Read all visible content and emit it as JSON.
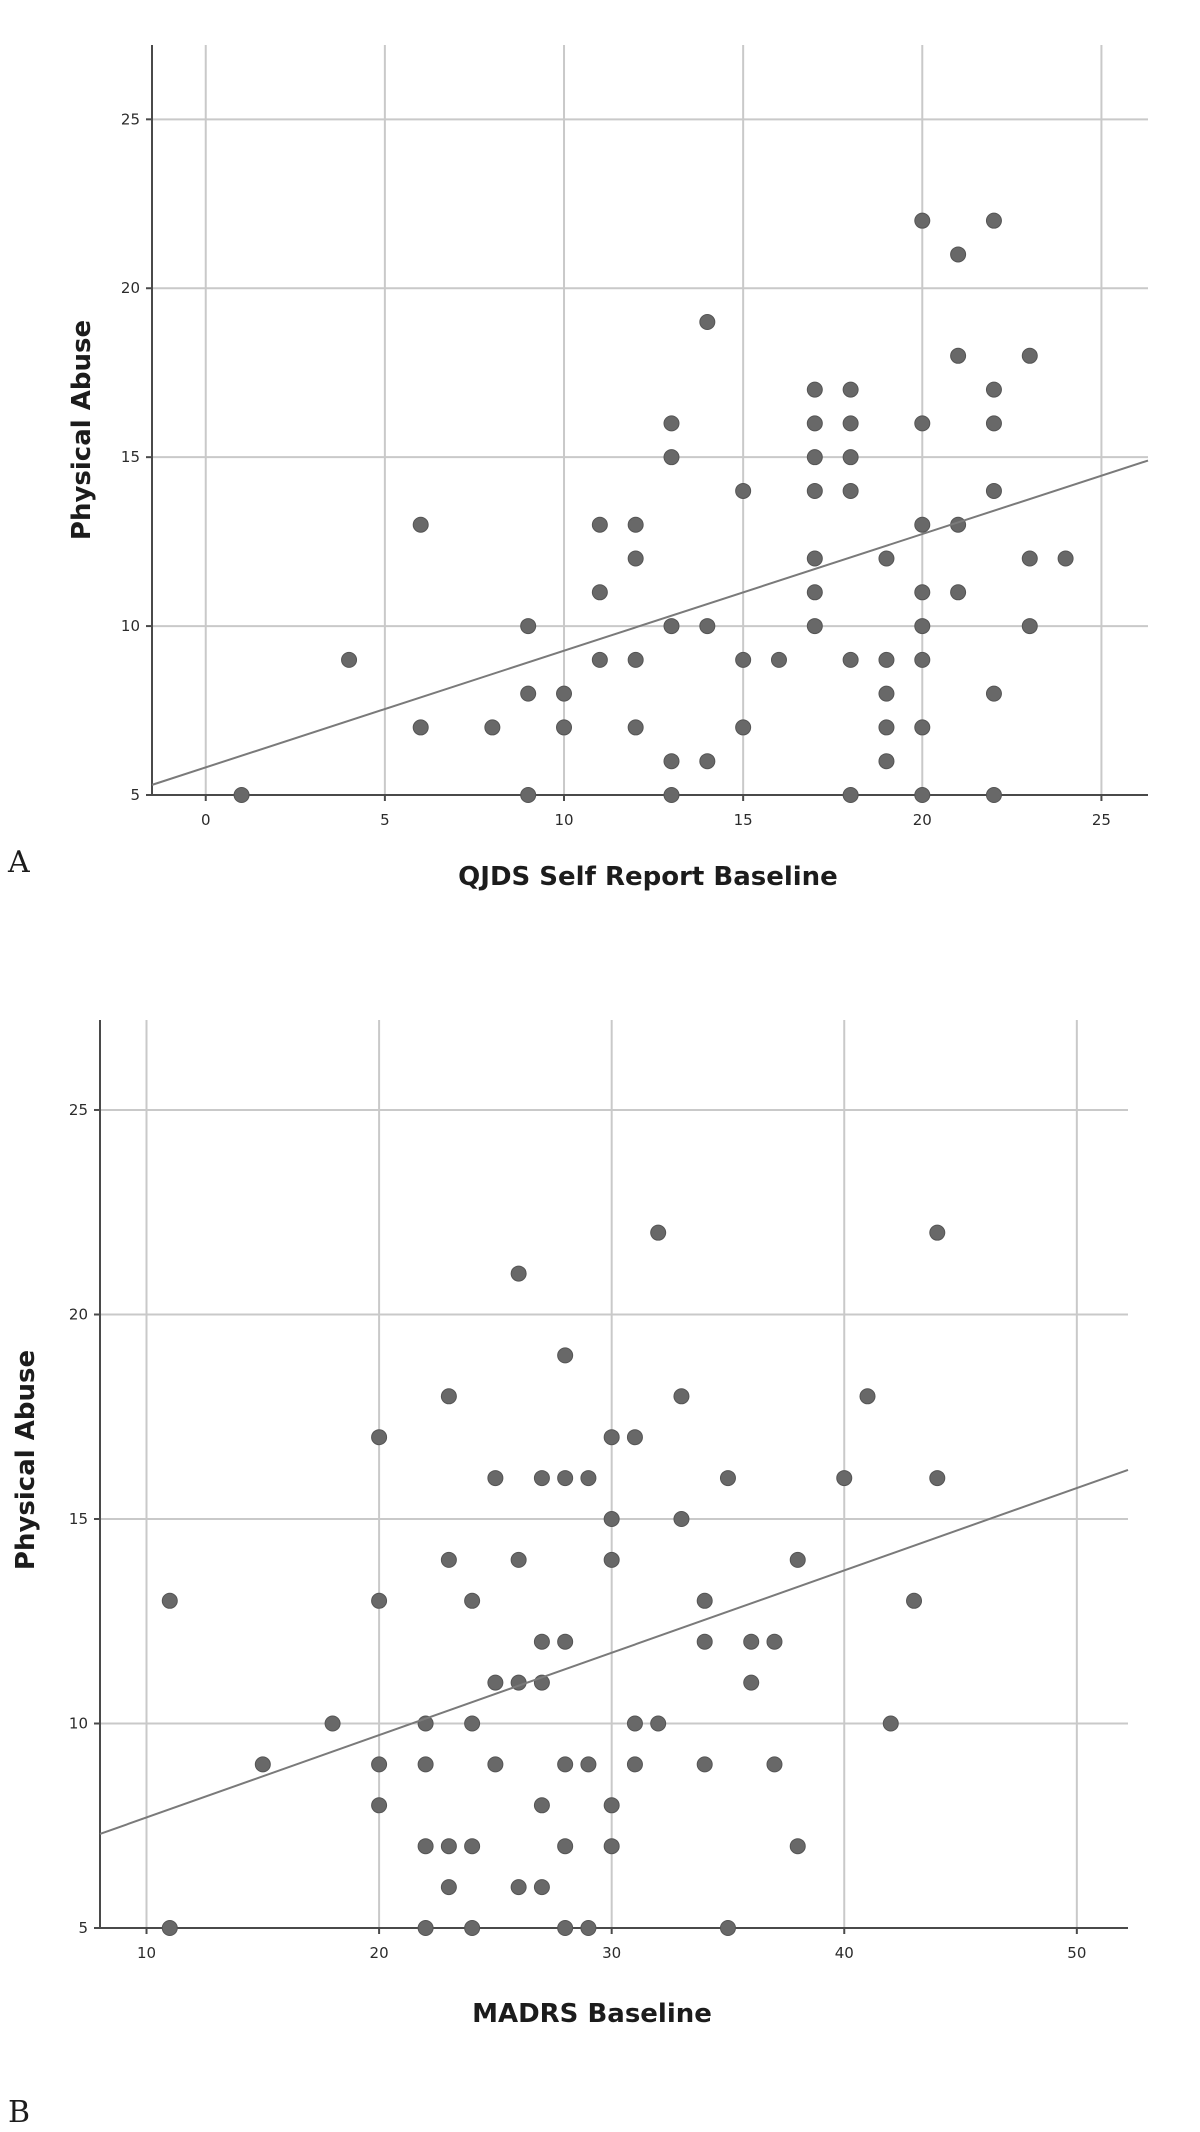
{
  "chart_data": [
    {
      "type": "scatter",
      "panel_label": "A",
      "xlabel": "QJDS Self Report Baseline",
      "ylabel": "Physical Abuse",
      "xlim": [
        -1.5,
        26.3
      ],
      "ylim": [
        5,
        27.2
      ],
      "xticks": [
        0,
        5,
        10,
        15,
        20,
        25
      ],
      "yticks": [
        5,
        10,
        15,
        20,
        25
      ],
      "grid": true,
      "fit_line": {
        "x": [
          -1.5,
          26.3
        ],
        "y": [
          5.3,
          14.9
        ]
      },
      "points": [
        [
          1,
          5
        ],
        [
          4,
          9
        ],
        [
          6,
          13
        ],
        [
          6,
          7
        ],
        [
          8,
          7
        ],
        [
          9,
          10
        ],
        [
          9,
          8
        ],
        [
          9,
          5
        ],
        [
          10,
          8
        ],
        [
          10,
          7
        ],
        [
          11,
          13
        ],
        [
          11,
          11
        ],
        [
          11,
          9
        ],
        [
          12,
          13
        ],
        [
          12,
          12
        ],
        [
          12,
          9
        ],
        [
          12,
          7
        ],
        [
          13,
          16
        ],
        [
          13,
          15
        ],
        [
          13,
          10
        ],
        [
          13,
          6
        ],
        [
          13,
          5
        ],
        [
          14,
          19
        ],
        [
          14,
          10
        ],
        [
          14,
          6
        ],
        [
          15,
          14
        ],
        [
          15,
          9
        ],
        [
          15,
          7
        ],
        [
          16,
          9
        ],
        [
          17,
          17
        ],
        [
          17,
          16
        ],
        [
          17,
          15
        ],
        [
          17,
          14
        ],
        [
          17,
          12
        ],
        [
          17,
          11
        ],
        [
          17,
          10
        ],
        [
          18,
          17
        ],
        [
          18,
          16
        ],
        [
          18,
          15
        ],
        [
          18,
          14
        ],
        [
          18,
          9
        ],
        [
          18,
          5
        ],
        [
          19,
          12
        ],
        [
          19,
          9
        ],
        [
          19,
          8
        ],
        [
          19,
          7
        ],
        [
          19,
          6
        ],
        [
          20,
          22
        ],
        [
          20,
          16
        ],
        [
          20,
          13
        ],
        [
          20,
          11
        ],
        [
          20,
          10
        ],
        [
          20,
          9
        ],
        [
          20,
          7
        ],
        [
          20,
          5
        ],
        [
          21,
          21
        ],
        [
          21,
          18
        ],
        [
          21,
          13
        ],
        [
          21,
          11
        ],
        [
          22,
          22
        ],
        [
          22,
          17
        ],
        [
          22,
          16
        ],
        [
          22,
          14
        ],
        [
          22,
          8
        ],
        [
          22,
          5
        ],
        [
          23,
          18
        ],
        [
          23,
          12
        ],
        [
          23,
          10
        ],
        [
          24,
          12
        ]
      ]
    },
    {
      "type": "scatter",
      "panel_label": "B",
      "xlabel": "MADRS Baseline",
      "ylabel": "Physical Abuse",
      "xlim": [
        8,
        52.2
      ],
      "ylim": [
        5,
        27.2
      ],
      "xticks": [
        10,
        20,
        30,
        40,
        50
      ],
      "yticks": [
        5,
        10,
        15,
        20,
        25
      ],
      "grid": true,
      "fit_line": {
        "x": [
          8,
          52.2
        ],
        "y": [
          7.3,
          16.2
        ]
      },
      "points": [
        [
          11,
          13
        ],
        [
          11,
          5
        ],
        [
          15,
          9
        ],
        [
          18,
          10
        ],
        [
          20,
          17
        ],
        [
          20,
          13
        ],
        [
          20,
          9
        ],
        [
          20,
          8
        ],
        [
          22,
          10
        ],
        [
          22,
          9
        ],
        [
          22,
          7
        ],
        [
          22,
          5
        ],
        [
          23,
          18
        ],
        [
          23,
          14
        ],
        [
          23,
          7
        ],
        [
          23,
          6
        ],
        [
          24,
          13
        ],
        [
          24,
          10
        ],
        [
          24,
          7
        ],
        [
          24,
          5
        ],
        [
          25,
          16
        ],
        [
          25,
          11
        ],
        [
          25,
          9
        ],
        [
          26,
          21
        ],
        [
          26,
          14
        ],
        [
          26,
          11
        ],
        [
          26,
          6
        ],
        [
          27,
          16
        ],
        [
          27,
          12
        ],
        [
          27,
          11
        ],
        [
          27,
          8
        ],
        [
          27,
          6
        ],
        [
          28,
          19
        ],
        [
          28,
          16
        ],
        [
          28,
          12
        ],
        [
          28,
          9
        ],
        [
          28,
          7
        ],
        [
          28,
          5
        ],
        [
          29,
          16
        ],
        [
          29,
          9
        ],
        [
          29,
          5
        ],
        [
          30,
          17
        ],
        [
          30,
          15
        ],
        [
          30,
          14
        ],
        [
          30,
          8
        ],
        [
          30,
          7
        ],
        [
          31,
          17
        ],
        [
          31,
          10
        ],
        [
          31,
          9
        ],
        [
          32,
          22
        ],
        [
          32,
          10
        ],
        [
          33,
          18
        ],
        [
          33,
          15
        ],
        [
          34,
          13
        ],
        [
          34,
          12
        ],
        [
          34,
          9
        ],
        [
          35,
          16
        ],
        [
          35,
          5
        ],
        [
          36,
          12
        ],
        [
          36,
          11
        ],
        [
          37,
          12
        ],
        [
          37,
          9
        ],
        [
          38,
          14
        ],
        [
          38,
          7
        ],
        [
          40,
          16
        ],
        [
          41,
          18
        ],
        [
          42,
          10
        ],
        [
          43,
          13
        ],
        [
          44,
          22
        ],
        [
          44,
          16
        ]
      ]
    }
  ]
}
